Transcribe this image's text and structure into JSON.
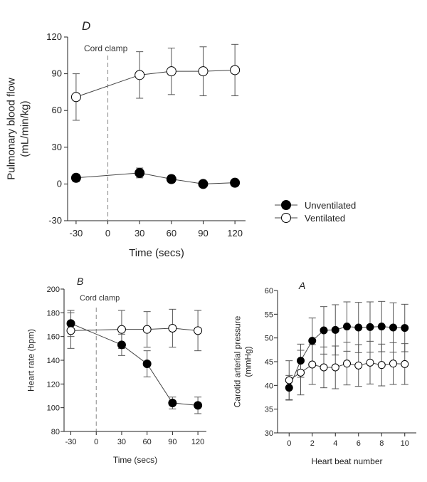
{
  "legend": {
    "unventilated": "Unventilated",
    "ventilated": "Ventilated"
  },
  "chart_data": [
    {
      "id": "D",
      "type": "line",
      "panel_label": "D",
      "xlabel": "Time (secs)",
      "ylabel_line1": "Pulmonary blood flow",
      "ylabel_line2": "(mL/min/kg)",
      "annotation": "Cord clamp",
      "xlim": [
        -38,
        130
      ],
      "ylim": [
        -30,
        120
      ],
      "xticks": [
        -30,
        0,
        30,
        60,
        90,
        120
      ],
      "yticks": [
        -30,
        0,
        30,
        60,
        90,
        120
      ],
      "clamp_x": 0,
      "series": [
        {
          "name": "Unventilated",
          "filled": true,
          "x": [
            -30,
            30,
            60,
            90,
            120
          ],
          "y": [
            5,
            9,
            4,
            0,
            1
          ],
          "err": [
            3,
            4,
            3,
            1,
            1
          ]
        },
        {
          "name": "Ventilated",
          "filled": false,
          "x": [
            -30,
            30,
            60,
            90,
            120
          ],
          "y": [
            71,
            89,
            92,
            92,
            93
          ],
          "err": [
            19,
            19,
            19,
            20,
            21
          ]
        }
      ]
    },
    {
      "id": "B",
      "type": "line",
      "panel_label": "B",
      "xlabel": "Time (secs)",
      "ylabel_line1": "Heart rate (bpm)",
      "ylabel_line2": "",
      "annotation": "Cord clamp",
      "xlim": [
        -38,
        130
      ],
      "ylim": [
        80,
        200
      ],
      "xticks": [
        -30,
        0,
        30,
        60,
        90,
        120
      ],
      "yticks": [
        80,
        100,
        120,
        140,
        160,
        180,
        200
      ],
      "clamp_x": 0,
      "series": [
        {
          "name": "Unventilated",
          "filled": true,
          "x": [
            -30,
            30,
            60,
            90,
            120
          ],
          "y": [
            171,
            153,
            137,
            104,
            102
          ],
          "err": [
            11,
            9,
            11,
            5,
            7
          ]
        },
        {
          "name": "Ventilated",
          "filled": false,
          "x": [
            -30,
            30,
            60,
            90,
            120
          ],
          "y": [
            165,
            166,
            166,
            167,
            165
          ],
          "err": [
            15,
            16,
            15,
            16,
            17
          ]
        }
      ]
    },
    {
      "id": "A",
      "type": "line",
      "panel_label": "A",
      "xlabel": "Heart beat number",
      "ylabel_line1": "Carotid arterial pressure",
      "ylabel_line2": "(mmHg)",
      "annotation": "",
      "xlim": [
        -1,
        11
      ],
      "ylim": [
        30,
        60
      ],
      "xticks": [
        0,
        2,
        4,
        6,
        8,
        10
      ],
      "yticks": [
        30,
        35,
        40,
        45,
        50,
        55,
        60
      ],
      "clamp_x": null,
      "series": [
        {
          "name": "Unventilated",
          "filled": true,
          "x": [
            0,
            1,
            2,
            3,
            4,
            5,
            6,
            7,
            8,
            9,
            10
          ],
          "y": [
            39.5,
            45.2,
            49.4,
            51.6,
            51.7,
            52.4,
            52.2,
            52.3,
            52.4,
            52.2,
            52.1
          ],
          "err": [
            2.6,
            3.5,
            4.8,
            5.0,
            5.3,
            5.2,
            5.3,
            5.3,
            5.3,
            5.2,
            5.0
          ]
        },
        {
          "name": "Ventilated",
          "filled": false,
          "x": [
            0,
            1,
            2,
            3,
            4,
            5,
            6,
            7,
            8,
            9,
            10
          ],
          "y": [
            41.1,
            42.7,
            44.4,
            43.8,
            43.8,
            44.6,
            44.2,
            44.8,
            44.3,
            44.6,
            44.5
          ],
          "err": [
            4.1,
            4.7,
            4.2,
            4.3,
            4.5,
            4.5,
            4.4,
            4.5,
            4.4,
            4.4,
            4.3
          ]
        }
      ]
    }
  ]
}
